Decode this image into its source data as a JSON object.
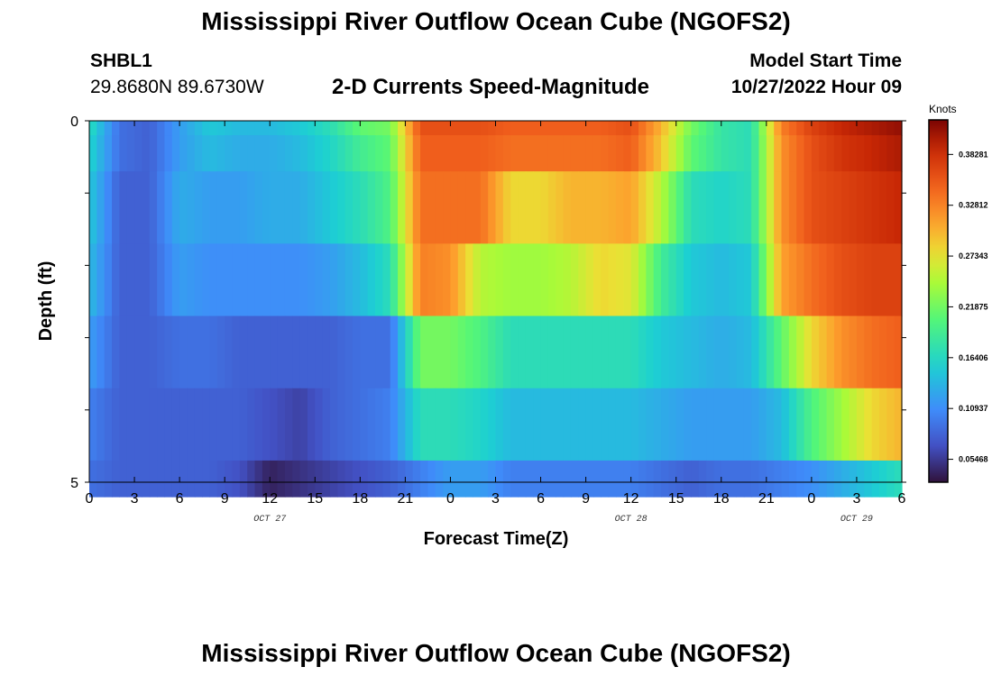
{
  "header": {
    "main_title": "Mississippi River Outflow Ocean Cube (NGOFS2)",
    "station_id": "SHBL1",
    "station_coords": "29.8680N  89.6730W",
    "chart_title": "2-D Currents Speed-Magnitude",
    "start_label": "Model Start Time",
    "start_value": "10/27/2022 Hour 09"
  },
  "second_panel": {
    "main_title": "Mississippi River Outflow Ocean Cube (NGOFS2)"
  },
  "chart_data": {
    "type": "heatmap",
    "title": "2-D Currents Speed-Magnitude",
    "xlabel": "Forecast Time(Z)",
    "ylabel": "Depth (ft)",
    "colorbar_label": "Knots",
    "x_tick_labels": [
      "0",
      "3",
      "6",
      "9",
      "12",
      "15",
      "18",
      "21",
      "0",
      "3",
      "6",
      "9",
      "12",
      "15",
      "18",
      "21",
      "0",
      "3",
      "6"
    ],
    "date_labels": [
      {
        "label": "OCT 27",
        "hour": 12
      },
      {
        "label": "OCT 28",
        "hour": 36
      },
      {
        "label": "OCT 29",
        "hour": 51
      }
    ],
    "x_range_hours": [
      0,
      54
    ],
    "y_range": [
      0,
      5
    ],
    "y_tick_labels": [
      {
        "value": 0,
        "label": "0"
      },
      {
        "value": 5,
        "label": "5"
      }
    ],
    "colorbar_range": [
      0.03,
      0.42
    ],
    "colorbar_ticks": [
      "0.05468",
      "0.10937",
      "0.16406",
      "0.21875",
      "0.27343",
      "0.32812",
      "0.38281"
    ],
    "colorbar_tick_values": [
      0.05468,
      0.10937,
      0.16406,
      0.21875,
      0.27343,
      0.32812,
      0.38281
    ],
    "depth_bins": [
      0.2,
      0.5,
      1.0,
      1.0,
      1.0,
      1.0,
      0.5
    ],
    "hours": [
      0,
      2,
      4,
      6,
      8,
      10,
      12,
      14,
      16,
      18,
      20,
      22,
      24,
      26,
      28,
      30,
      32,
      34,
      36,
      38,
      40,
      42,
      44,
      46,
      48,
      50,
      52,
      54
    ],
    "rows": [
      [
        0.17,
        0.09,
        0.08,
        0.12,
        0.15,
        0.14,
        0.14,
        0.15,
        0.17,
        0.21,
        0.22,
        0.36,
        0.36,
        0.36,
        0.35,
        0.35,
        0.35,
        0.35,
        0.36,
        0.3,
        0.22,
        0.18,
        0.17,
        0.33,
        0.37,
        0.39,
        0.4,
        0.41
      ],
      [
        0.16,
        0.09,
        0.08,
        0.12,
        0.14,
        0.13,
        0.13,
        0.14,
        0.16,
        0.19,
        0.21,
        0.35,
        0.35,
        0.35,
        0.34,
        0.34,
        0.34,
        0.34,
        0.35,
        0.29,
        0.21,
        0.18,
        0.17,
        0.32,
        0.36,
        0.38,
        0.39,
        0.4
      ],
      [
        0.15,
        0.08,
        0.08,
        0.13,
        0.12,
        0.12,
        0.13,
        0.13,
        0.15,
        0.17,
        0.2,
        0.34,
        0.34,
        0.34,
        0.28,
        0.28,
        0.3,
        0.3,
        0.31,
        0.25,
        0.17,
        0.16,
        0.17,
        0.32,
        0.36,
        0.37,
        0.38,
        0.39
      ],
      [
        0.14,
        0.08,
        0.08,
        0.12,
        0.11,
        0.11,
        0.11,
        0.11,
        0.12,
        0.14,
        0.17,
        0.33,
        0.32,
        0.25,
        0.24,
        0.24,
        0.25,
        0.28,
        0.27,
        0.19,
        0.15,
        0.14,
        0.15,
        0.31,
        0.34,
        0.36,
        0.37,
        0.37
      ],
      [
        0.12,
        0.08,
        0.08,
        0.09,
        0.09,
        0.08,
        0.08,
        0.08,
        0.08,
        0.09,
        0.09,
        0.22,
        0.22,
        0.2,
        0.17,
        0.17,
        0.17,
        0.17,
        0.17,
        0.15,
        0.14,
        0.13,
        0.14,
        0.21,
        0.28,
        0.32,
        0.34,
        0.35
      ],
      [
        0.1,
        0.08,
        0.08,
        0.08,
        0.08,
        0.08,
        0.07,
        0.06,
        0.08,
        0.09,
        0.1,
        0.17,
        0.17,
        0.16,
        0.14,
        0.14,
        0.14,
        0.14,
        0.14,
        0.13,
        0.12,
        0.12,
        0.12,
        0.14,
        0.2,
        0.24,
        0.28,
        0.3
      ],
      [
        0.09,
        0.08,
        0.08,
        0.08,
        0.08,
        0.07,
        0.04,
        0.05,
        0.06,
        0.07,
        0.08,
        0.1,
        0.12,
        0.12,
        0.1,
        0.1,
        0.1,
        0.1,
        0.1,
        0.09,
        0.08,
        0.09,
        0.09,
        0.1,
        0.11,
        0.13,
        0.15,
        0.17
      ]
    ]
  }
}
